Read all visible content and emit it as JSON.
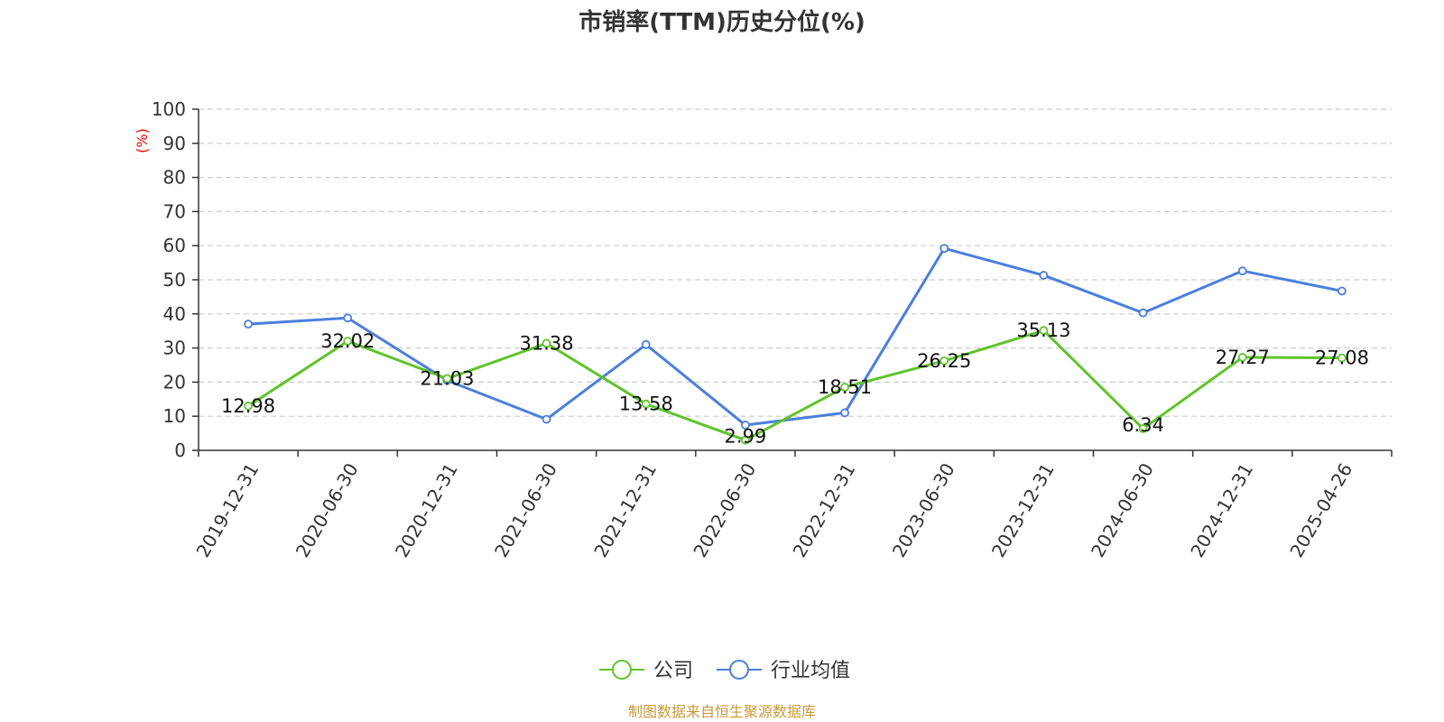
{
  "chart_data": {
    "type": "line",
    "title": "市销率(TTM)历史分位(%)",
    "ylabel": "(%)",
    "ylim": [
      0,
      100
    ],
    "yticks": [
      0,
      10,
      20,
      30,
      40,
      50,
      60,
      70,
      80,
      90,
      100
    ],
    "grid": true,
    "legend_position": "bottom-center",
    "categories": [
      "2019-12-31",
      "2020-06-30",
      "2020-12-31",
      "2021-06-30",
      "2021-12-31",
      "2022-06-30",
      "2022-12-31",
      "2023-06-30",
      "2023-12-31",
      "2024-06-30",
      "2024-12-31",
      "2025-04-26"
    ],
    "series": [
      {
        "name": "公司",
        "color": "#5ec42a",
        "values": [
          12.98,
          32.02,
          21.03,
          31.38,
          13.58,
          2.99,
          18.51,
          26.25,
          35.13,
          6.34,
          27.27,
          27.08
        ],
        "show_labels": true
      },
      {
        "name": "行业均值",
        "color": "#4a7fdc",
        "values": [
          37.0,
          38.8,
          20.5,
          9.1,
          31.0,
          7.4,
          11.0,
          59.2,
          51.3,
          40.3,
          52.6,
          46.7
        ],
        "show_labels": false
      }
    ],
    "source": "制图数据来自恒生聚源数据库",
    "source_color": "#c89a3a",
    "ylabel_color": "#ff0000",
    "axis_color": "#333333",
    "grid_color": "#cccccc"
  }
}
